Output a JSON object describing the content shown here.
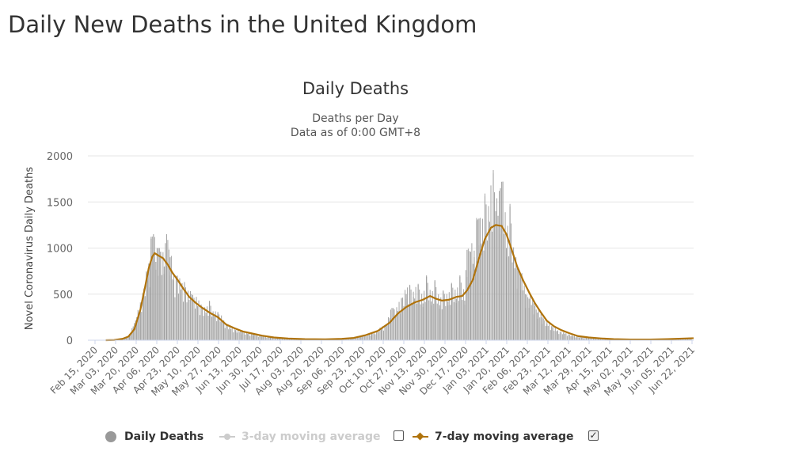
{
  "page": {
    "heading": "Daily New Deaths in the United Kingdom"
  },
  "chart_data": {
    "type": "bar",
    "title": "Daily Deaths",
    "subtitle_lines": [
      "Deaths per Day",
      "Data as of 0:00 GMT+8"
    ],
    "ylabel": "Novel Coronavirus Daily Deaths",
    "xlabel": "",
    "ylim": [
      0,
      2000
    ],
    "y_ticks": [
      0,
      500,
      1000,
      1500,
      2000
    ],
    "x_tick_labels": [
      "Feb 15, 2020",
      "Mar 03, 2020",
      "Mar 20, 2020",
      "Apr 06, 2020",
      "Apr 23, 2020",
      "May 10, 2020",
      "May 27, 2020",
      "Jun 13, 2020",
      "Jun 30, 2020",
      "Jul 17, 2020",
      "Aug 03, 2020",
      "Aug 20, 2020",
      "Sep 06, 2020",
      "Sep 23, 2020",
      "Oct 10, 2020",
      "Oct 27, 2020",
      "Nov 13, 2020",
      "Nov 30, 2020",
      "Dec 17, 2020",
      "Jan 03, 2021",
      "Jan 20, 2021",
      "Feb 06, 2021",
      "Feb 23, 2021",
      "Mar 12, 2021",
      "Mar 29, 2021",
      "Apr 15, 2021",
      "May 02, 2021",
      "May 19, 2021",
      "Jun 05, 2021",
      "Jun 22, 2021"
    ],
    "x_start": "2020-02-15",
    "x_end": "2021-07-07",
    "grid": true,
    "legend_position": "bottom",
    "series": [
      {
        "name": "Daily Deaths",
        "kind": "bar",
        "color": "#a6a6a6",
        "points": [
          [
            "2020-03-05",
            0
          ],
          [
            "2020-03-10",
            2
          ],
          [
            "2020-03-14",
            10
          ],
          [
            "2020-03-18",
            30
          ],
          [
            "2020-03-21",
            60
          ],
          [
            "2020-03-24",
            150
          ],
          [
            "2020-03-27",
            250
          ],
          [
            "2020-03-30",
            380
          ],
          [
            "2020-04-02",
            560
          ],
          [
            "2020-04-05",
            720
          ],
          [
            "2020-04-07",
            820
          ],
          [
            "2020-04-08",
            1100
          ],
          [
            "2020-04-10",
            1150
          ],
          [
            "2020-04-12",
            850
          ],
          [
            "2020-04-14",
            1000
          ],
          [
            "2020-04-16",
            960
          ],
          [
            "2020-04-19",
            800
          ],
          [
            "2020-04-21",
            1150
          ],
          [
            "2020-04-24",
            900
          ],
          [
            "2020-04-27",
            650
          ],
          [
            "2020-04-30",
            700
          ],
          [
            "2020-05-03",
            550
          ],
          [
            "2020-05-06",
            620
          ],
          [
            "2020-05-09",
            480
          ],
          [
            "2020-05-12",
            500
          ],
          [
            "2020-05-16",
            420
          ],
          [
            "2020-05-20",
            380
          ],
          [
            "2020-05-24",
            300
          ],
          [
            "2020-05-27",
            420
          ],
          [
            "2020-05-30",
            280
          ],
          [
            "2020-06-03",
            300
          ],
          [
            "2020-06-08",
            200
          ],
          [
            "2020-06-13",
            140
          ],
          [
            "2020-06-18",
            110
          ],
          [
            "2020-06-23",
            90
          ],
          [
            "2020-06-28",
            70
          ],
          [
            "2020-07-03",
            60
          ],
          [
            "2020-07-10",
            45
          ],
          [
            "2020-07-17",
            30
          ],
          [
            "2020-07-25",
            22
          ],
          [
            "2020-08-03",
            15
          ],
          [
            "2020-08-12",
            12
          ],
          [
            "2020-08-20",
            10
          ],
          [
            "2020-08-28",
            10
          ],
          [
            "2020-09-06",
            10
          ],
          [
            "2020-09-14",
            15
          ],
          [
            "2020-09-23",
            25
          ],
          [
            "2020-10-01",
            50
          ],
          [
            "2020-10-10",
            70
          ],
          [
            "2020-10-18",
            130
          ],
          [
            "2020-10-23",
            180
          ],
          [
            "2020-10-27",
            350
          ],
          [
            "2020-10-31",
            320
          ],
          [
            "2020-11-04",
            450
          ],
          [
            "2020-11-08",
            500
          ],
          [
            "2020-11-11",
            590
          ],
          [
            "2020-11-14",
            470
          ],
          [
            "2020-11-18",
            600
          ],
          [
            "2020-11-22",
            400
          ],
          [
            "2020-11-25",
            690
          ],
          [
            "2020-11-29",
            420
          ],
          [
            "2020-12-02",
            640
          ],
          [
            "2020-12-06",
            380
          ],
          [
            "2020-12-09",
            530
          ],
          [
            "2020-12-13",
            420
          ],
          [
            "2020-12-16",
            610
          ],
          [
            "2020-12-20",
            450
          ],
          [
            "2020-12-23",
            690
          ],
          [
            "2020-12-27",
            430
          ],
          [
            "2020-12-29",
            980
          ],
          [
            "2021-01-01",
            960
          ],
          [
            "2021-01-04",
            900
          ],
          [
            "2021-01-06",
            1300
          ],
          [
            "2021-01-08",
            1320
          ],
          [
            "2021-01-10",
            1050
          ],
          [
            "2021-01-13",
            1560
          ],
          [
            "2021-01-16",
            1300
          ],
          [
            "2021-01-20",
            1810
          ],
          [
            "2021-01-22",
            1400
          ],
          [
            "2021-01-24",
            1350
          ],
          [
            "2021-01-26",
            1650
          ],
          [
            "2021-01-28",
            1720
          ],
          [
            "2021-01-31",
            1000
          ],
          [
            "2021-02-03",
            1450
          ],
          [
            "2021-02-06",
            900
          ],
          [
            "2021-02-09",
            800
          ],
          [
            "2021-02-12",
            700
          ],
          [
            "2021-02-16",
            500
          ],
          [
            "2021-02-19",
            450
          ],
          [
            "2021-02-23",
            400
          ],
          [
            "2021-02-26",
            300
          ],
          [
            "2021-03-02",
            250
          ],
          [
            "2021-03-06",
            180
          ],
          [
            "2021-03-10",
            150
          ],
          [
            "2021-03-15",
            100
          ],
          [
            "2021-03-20",
            80
          ],
          [
            "2021-03-27",
            50
          ],
          [
            "2021-04-05",
            30
          ],
          [
            "2021-04-15",
            20
          ],
          [
            "2021-04-25",
            15
          ],
          [
            "2021-05-05",
            10
          ],
          [
            "2021-05-15",
            8
          ],
          [
            "2021-05-25",
            8
          ],
          [
            "2021-06-05",
            10
          ],
          [
            "2021-06-15",
            15
          ],
          [
            "2021-06-25",
            20
          ],
          [
            "2021-07-05",
            28
          ]
        ]
      },
      {
        "name": "3-day moving average",
        "kind": "line",
        "color": "#c6c6c6",
        "visible": false,
        "checked": false
      },
      {
        "name": "7-day moving average",
        "kind": "line",
        "color": "#b0730b",
        "visible": true,
        "checked": true,
        "checkmark": "✓",
        "points": [
          [
            "2020-03-01",
            0
          ],
          [
            "2020-03-08",
            2
          ],
          [
            "2020-03-15",
            15
          ],
          [
            "2020-03-20",
            40
          ],
          [
            "2020-03-25",
            120
          ],
          [
            "2020-03-30",
            330
          ],
          [
            "2020-04-03",
            580
          ],
          [
            "2020-04-06",
            780
          ],
          [
            "2020-04-09",
            905
          ],
          [
            "2020-04-11",
            945
          ],
          [
            "2020-04-14",
            920
          ],
          [
            "2020-04-18",
            890
          ],
          [
            "2020-04-22",
            820
          ],
          [
            "2020-04-26",
            730
          ],
          [
            "2020-04-30",
            660
          ],
          [
            "2020-05-05",
            560
          ],
          [
            "2020-05-10",
            470
          ],
          [
            "2020-05-15",
            410
          ],
          [
            "2020-05-20",
            360
          ],
          [
            "2020-05-27",
            300
          ],
          [
            "2020-06-03",
            250
          ],
          [
            "2020-06-10",
            170
          ],
          [
            "2020-06-17",
            130
          ],
          [
            "2020-06-24",
            95
          ],
          [
            "2020-07-01",
            75
          ],
          [
            "2020-07-10",
            50
          ],
          [
            "2020-07-20",
            30
          ],
          [
            "2020-08-01",
            18
          ],
          [
            "2020-08-15",
            12
          ],
          [
            "2020-09-01",
            10
          ],
          [
            "2020-09-15",
            15
          ],
          [
            "2020-09-25",
            25
          ],
          [
            "2020-10-05",
            55
          ],
          [
            "2020-10-15",
            100
          ],
          [
            "2020-10-25",
            190
          ],
          [
            "2020-11-01",
            290
          ],
          [
            "2020-11-08",
            360
          ],
          [
            "2020-11-15",
            410
          ],
          [
            "2020-11-22",
            440
          ],
          [
            "2020-11-28",
            480
          ],
          [
            "2020-12-03",
            450
          ],
          [
            "2020-12-08",
            430
          ],
          [
            "2020-12-14",
            440
          ],
          [
            "2020-12-20",
            470
          ],
          [
            "2020-12-25",
            480
          ],
          [
            "2020-12-29",
            540
          ],
          [
            "2021-01-03",
            660
          ],
          [
            "2021-01-08",
            890
          ],
          [
            "2021-01-13",
            1100
          ],
          [
            "2021-01-18",
            1220
          ],
          [
            "2021-01-22",
            1250
          ],
          [
            "2021-01-27",
            1240
          ],
          [
            "2021-01-31",
            1150
          ],
          [
            "2021-02-04",
            1000
          ],
          [
            "2021-02-09",
            800
          ],
          [
            "2021-02-14",
            650
          ],
          [
            "2021-02-19",
            520
          ],
          [
            "2021-02-24",
            400
          ],
          [
            "2021-03-01",
            300
          ],
          [
            "2021-03-06",
            210
          ],
          [
            "2021-03-12",
            150
          ],
          [
            "2021-03-18",
            110
          ],
          [
            "2021-03-25",
            75
          ],
          [
            "2021-04-01",
            45
          ],
          [
            "2021-04-10",
            30
          ],
          [
            "2021-04-20",
            20
          ],
          [
            "2021-05-01",
            12
          ],
          [
            "2021-05-15",
            8
          ],
          [
            "2021-06-01",
            8
          ],
          [
            "2021-06-15",
            12
          ],
          [
            "2021-07-07",
            22
          ]
        ]
      }
    ]
  }
}
